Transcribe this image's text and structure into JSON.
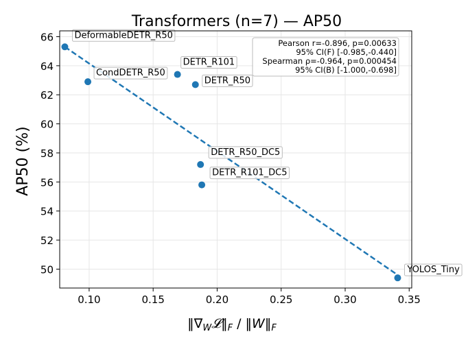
{
  "chart_data": {
    "type": "scatter",
    "title": "Transformers (n=7) — AP50",
    "xlabel": "‖∇_W𝓛‖_F / ‖W‖_F",
    "xlabel_parts": {
      "open": "‖∇",
      "sub_w": "W",
      "loss": "𝓛",
      "close_open": "‖",
      "sub_f1": "F",
      "slash": " / ‖",
      "w": "W",
      "close2": "‖",
      "sub_f2": "F"
    },
    "ylabel": "AP50 (%)",
    "xlim": [
      0.077,
      0.352
    ],
    "ylim": [
      48.7,
      66.4
    ],
    "xticks": [
      0.1,
      0.15,
      0.2,
      0.25,
      0.3,
      0.35
    ],
    "xtick_labels": [
      "0.10",
      "0.15",
      "0.20",
      "0.25",
      "0.30",
      "0.35"
    ],
    "yticks": [
      50,
      52,
      54,
      56,
      58,
      60,
      62,
      64,
      66
    ],
    "ytick_labels": [
      "50",
      "52",
      "54",
      "56",
      "58",
      "60",
      "62",
      "64",
      "66"
    ],
    "grid": true,
    "points": [
      {
        "label": "DeformableDETR_R50",
        "x": 0.081,
        "y": 65.3
      },
      {
        "label": "CondDETR_R50",
        "x": 0.099,
        "y": 62.9
      },
      {
        "label": "DETR_R101",
        "x": 0.169,
        "y": 63.4
      },
      {
        "label": "DETR_R50",
        "x": 0.183,
        "y": 62.7
      },
      {
        "label": "DETR_R50_DC5",
        "x": 0.187,
        "y": 57.2
      },
      {
        "label": "DETR_R101_DC5",
        "x": 0.188,
        "y": 55.8
      },
      {
        "label": "YOLOS_Tiny",
        "x": 0.341,
        "y": 49.4
      }
    ],
    "fit_line": {
      "x": [
        0.081,
        0.341
      ],
      "y": [
        65.3,
        49.6
      ]
    },
    "stats_box": [
      "Pearson r=-0.896, p=0.00633",
      "95% CI(F) [-0.985,-0.440]",
      "Spearman ρ=-0.964, p=0.000454",
      "95% CI(B) [-1.000,-0.698]"
    ],
    "colors": {
      "points": "#1f77b4",
      "fit_line": "#1f77b4",
      "grid": "#e6e6e6",
      "axes": "#000000",
      "label_box_edge": "#bbbbbb"
    }
  }
}
